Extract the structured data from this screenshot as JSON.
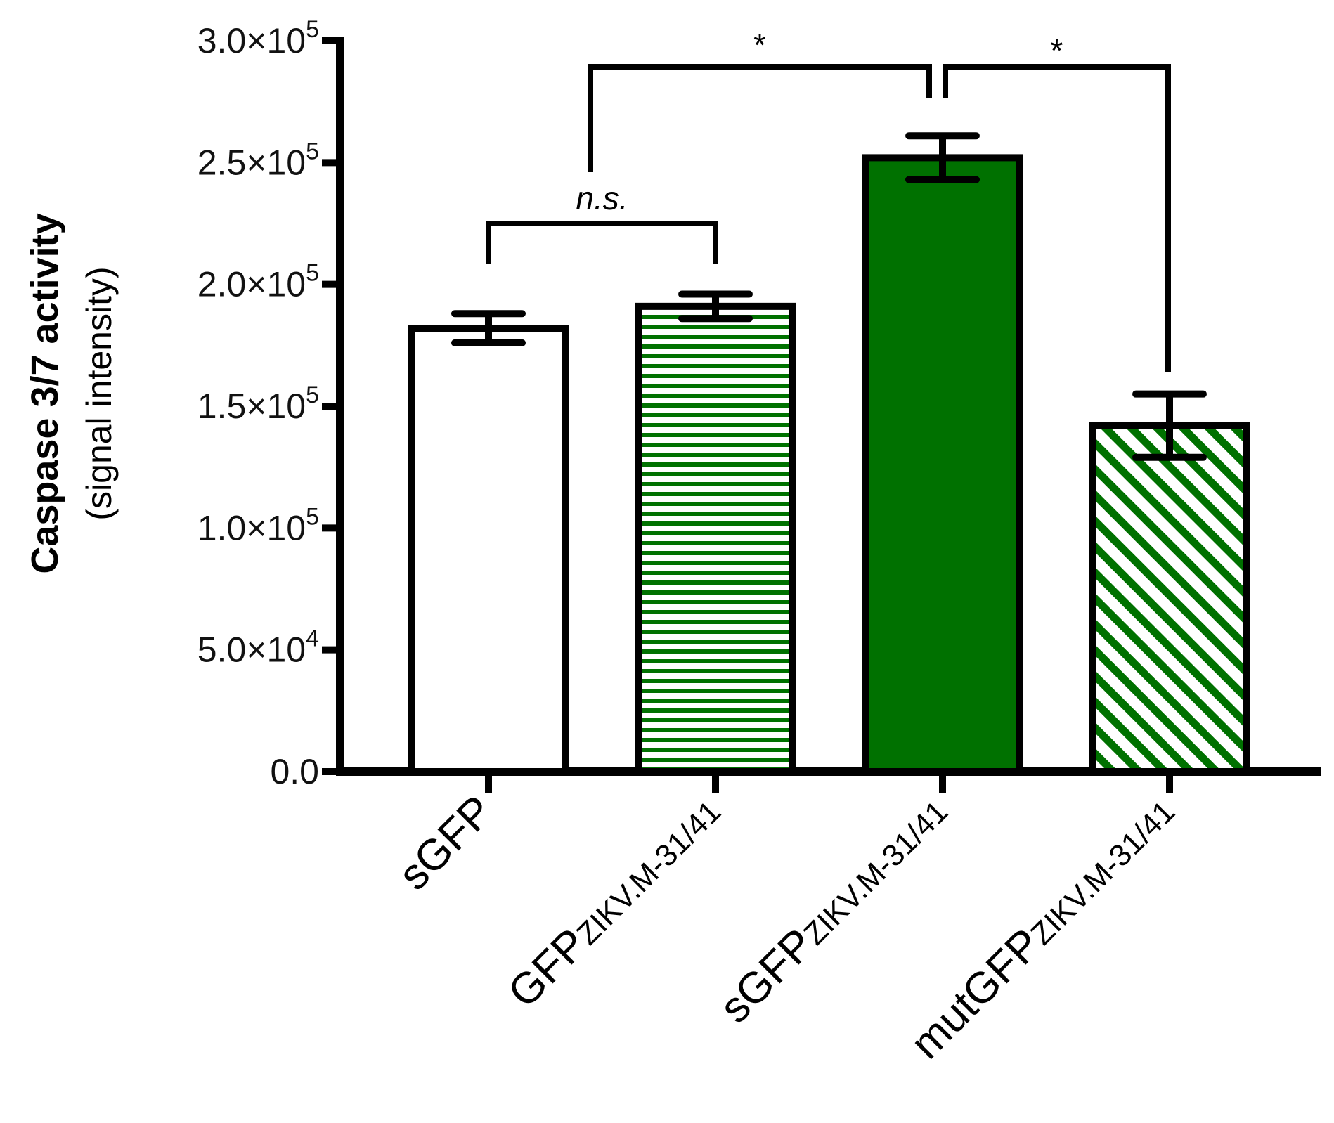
{
  "chart_data": {
    "type": "bar",
    "ylabel": "Caspase 3/7 activity",
    "ylabel_sub": "(signal intensity)",
    "ylim": [
      0,
      300000
    ],
    "yticks": [
      {
        "value": 0,
        "label": "0.0",
        "exp": ""
      },
      {
        "value": 50000,
        "label": "5.0×10",
        "exp": "4"
      },
      {
        "value": 100000,
        "label": "1.0×10",
        "exp": "5"
      },
      {
        "value": 150000,
        "label": "1.5×10",
        "exp": "5"
      },
      {
        "value": 200000,
        "label": "2.0×10",
        "exp": "5"
      },
      {
        "value": 250000,
        "label": "2.5×10",
        "exp": "5"
      },
      {
        "value": 300000,
        "label": "3.0×10",
        "exp": "5"
      }
    ],
    "categories": [
      {
        "main": "sGFP",
        "sub": ""
      },
      {
        "main": "GFP",
        "sub": "ZIKV.M-31/41"
      },
      {
        "main": "sGFP",
        "sub": "ZIKV.M-31/41"
      },
      {
        "main": "mutGFP",
        "sub": "ZIKV.M-31/41"
      }
    ],
    "values": [
      182000,
      191000,
      252000,
      142000
    ],
    "errors": [
      6000,
      5000,
      9000,
      13000
    ],
    "fills": [
      "#ffffff",
      "hstripe",
      "#007100",
      "dstripe"
    ],
    "accent_color": "#007100",
    "significance": [
      {
        "from": 0,
        "to": 1,
        "label": "n.s.",
        "italic": true
      },
      {
        "from": 1,
        "to": 2,
        "label": "*",
        "italic": false
      },
      {
        "from": 2,
        "to": 3,
        "label": "*",
        "italic": false
      }
    ]
  }
}
